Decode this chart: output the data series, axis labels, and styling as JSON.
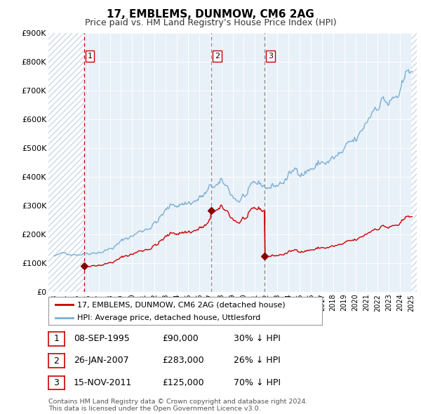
{
  "title": "17, EMBLEMS, DUNMOW, CM6 2AG",
  "subtitle": "Price paid vs. HM Land Registry’s House Price Index (HPI)",
  "sale_year_nums": [
    1995.69,
    2007.08,
    2011.88
  ],
  "sale_prices": [
    90000,
    283000,
    125000
  ],
  "sale_labels": [
    "1",
    "2",
    "3"
  ],
  "hpi_line_color": "#7bafd4",
  "price_line_color": "#cc0000",
  "sale_marker_color": "#880000",
  "vline1_color": "#cc0000",
  "vline23_color": "#888888",
  "ylabel_color": "#333333",
  "ylim": [
    0,
    900000
  ],
  "yticks": [
    0,
    100000,
    200000,
    300000,
    400000,
    500000,
    600000,
    700000,
    800000,
    900000
  ],
  "ytick_labels": [
    "£0",
    "£100K",
    "£200K",
    "£300K",
    "£400K",
    "£500K",
    "£600K",
    "£700K",
    "£800K",
    "£900K"
  ],
  "legend_label1": "17, EMBLEMS, DUNMOW, CM6 2AG (detached house)",
  "legend_label2": "HPI: Average price, detached house, Uttlesford",
  "table_rows": [
    [
      "1",
      "08-SEP-1995",
      "£90,000",
      "30% ↓ HPI"
    ],
    [
      "2",
      "26-JAN-2007",
      "£283,000",
      "26% ↓ HPI"
    ],
    [
      "3",
      "15-NOV-2011",
      "£125,000",
      "70% ↓ HPI"
    ]
  ],
  "footer": "Contains HM Land Registry data © Crown copyright and database right 2024.\nThis data is licensed under the Open Government Licence v3.0.",
  "background_color": "#ffffff",
  "grid_color": "#c8d8e8",
  "hatch_color": "#c8d8e8"
}
